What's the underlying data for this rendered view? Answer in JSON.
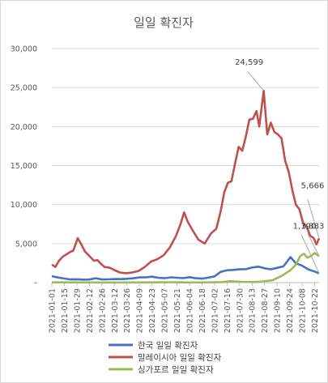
{
  "chart_data": {
    "type": "line",
    "title": "일일 확진자",
    "xlabel": "",
    "ylabel": "",
    "ylim": [
      0,
      30000
    ],
    "yticks": [
      0,
      5000,
      10000,
      15000,
      20000,
      25000,
      30000
    ],
    "ytick_labels": [
      "-",
      "5,000",
      "10,000",
      "15,000",
      "20,000",
      "25,000",
      "30,000"
    ],
    "xtick_labels": [
      "2021-01-01",
      "2021-01-15",
      "2021-01-29",
      "2021-02-12",
      "2021-02-26",
      "2021-03-12",
      "2021-03-26",
      "2021-04-09",
      "2021-04-23",
      "2021-05-07",
      "2021-05-21",
      "2021-06-04",
      "2021-06-18",
      "2021-07-02",
      "2021-07-16",
      "2021-07-30",
      "2021-08-13",
      "2021-08-27",
      "2021-09-10",
      "2021-09-24",
      "2021-10-08",
      "2021-10-22"
    ],
    "grid": "horizontal",
    "legend_position": "bottom",
    "x_start": "2021-01-01",
    "x_end": "2021-10-27",
    "series": [
      {
        "name": "한국 일일 확진자",
        "color": "#4472c4",
        "points": [
          [
            "2021-01-01",
            820
          ],
          [
            "2021-01-08",
            650
          ],
          [
            "2021-01-15",
            520
          ],
          [
            "2021-01-22",
            410
          ],
          [
            "2021-01-29",
            430
          ],
          [
            "2021-02-05",
            380
          ],
          [
            "2021-02-12",
            390
          ],
          [
            "2021-02-19",
            560
          ],
          [
            "2021-02-26",
            410
          ],
          [
            "2021-03-05",
            420
          ],
          [
            "2021-03-12",
            460
          ],
          [
            "2021-03-19",
            450
          ],
          [
            "2021-03-26",
            490
          ],
          [
            "2021-04-02",
            550
          ],
          [
            "2021-04-09",
            660
          ],
          [
            "2021-04-16",
            670
          ],
          [
            "2021-04-23",
            760
          ],
          [
            "2021-04-30",
            620
          ],
          [
            "2021-05-07",
            560
          ],
          [
            "2021-05-14",
            670
          ],
          [
            "2021-05-21",
            620
          ],
          [
            "2021-05-28",
            570
          ],
          [
            "2021-06-04",
            700
          ],
          [
            "2021-06-11",
            560
          ],
          [
            "2021-06-18",
            510
          ],
          [
            "2021-06-25",
            630
          ],
          [
            "2021-07-02",
            800
          ],
          [
            "2021-07-09",
            1380
          ],
          [
            "2021-07-16",
            1580
          ],
          [
            "2021-07-23",
            1630
          ],
          [
            "2021-07-30",
            1700
          ],
          [
            "2021-08-06",
            1720
          ],
          [
            "2021-08-13",
            1930
          ],
          [
            "2021-08-20",
            2050
          ],
          [
            "2021-08-27",
            1840
          ],
          [
            "2021-09-03",
            1700
          ],
          [
            "2021-09-10",
            1890
          ],
          [
            "2021-09-17",
            2080
          ],
          [
            "2021-09-25",
            3270
          ],
          [
            "2021-10-01",
            2480
          ],
          [
            "2021-10-08",
            2170
          ],
          [
            "2021-10-15",
            1680
          ],
          [
            "2021-10-22",
            1420
          ],
          [
            "2021-10-27",
            1190
          ]
        ]
      },
      {
        "name": "말레이시아 일일 확진자",
        "color": "#c0504d",
        "points": [
          [
            "2021-01-01",
            2300
          ],
          [
            "2021-01-05",
            2000
          ],
          [
            "2021-01-09",
            2800
          ],
          [
            "2021-01-13",
            3300
          ],
          [
            "2021-01-17",
            3600
          ],
          [
            "2021-01-21",
            3900
          ],
          [
            "2021-01-25",
            4100
          ],
          [
            "2021-01-30",
            5700
          ],
          [
            "2021-02-03",
            4900
          ],
          [
            "2021-02-07",
            4000
          ],
          [
            "2021-02-12",
            3400
          ],
          [
            "2021-02-17",
            2800
          ],
          [
            "2021-02-21",
            2900
          ],
          [
            "2021-02-25",
            2400
          ],
          [
            "2021-03-01",
            2000
          ],
          [
            "2021-03-07",
            1900
          ],
          [
            "2021-03-12",
            1600
          ],
          [
            "2021-03-18",
            1300
          ],
          [
            "2021-03-25",
            1200
          ],
          [
            "2021-04-01",
            1300
          ],
          [
            "2021-04-08",
            1500
          ],
          [
            "2021-04-15",
            2000
          ],
          [
            "2021-04-22",
            2700
          ],
          [
            "2021-04-29",
            3000
          ],
          [
            "2021-05-06",
            3500
          ],
          [
            "2021-05-13",
            4500
          ],
          [
            "2021-05-20",
            6000
          ],
          [
            "2021-05-25",
            7500
          ],
          [
            "2021-05-29",
            9000
          ],
          [
            "2021-06-02",
            7800
          ],
          [
            "2021-06-08",
            6600
          ],
          [
            "2021-06-14",
            5500
          ],
          [
            "2021-06-21",
            5000
          ],
          [
            "2021-06-28",
            6300
          ],
          [
            "2021-07-04",
            6900
          ],
          [
            "2021-07-09",
            9200
          ],
          [
            "2021-07-13",
            11600
          ],
          [
            "2021-07-17",
            12800
          ],
          [
            "2021-07-21",
            13000
          ],
          [
            "2021-07-25",
            15300
          ],
          [
            "2021-07-29",
            17400
          ],
          [
            "2021-08-02",
            16900
          ],
          [
            "2021-08-06",
            18700
          ],
          [
            "2021-08-10",
            20900
          ],
          [
            "2021-08-14",
            21000
          ],
          [
            "2021-08-18",
            22000
          ],
          [
            "2021-08-21",
            20000
          ],
          [
            "2021-08-26",
            24599
          ],
          [
            "2021-08-30",
            19000
          ],
          [
            "2021-09-03",
            20500
          ],
          [
            "2021-09-07",
            19300
          ],
          [
            "2021-09-11",
            19000
          ],
          [
            "2021-09-15",
            18500
          ],
          [
            "2021-09-19",
            15600
          ],
          [
            "2021-09-23",
            14200
          ],
          [
            "2021-09-27",
            11900
          ],
          [
            "2021-10-01",
            10000
          ],
          [
            "2021-10-05",
            9400
          ],
          [
            "2021-10-09",
            7700
          ],
          [
            "2021-10-13",
            7200
          ],
          [
            "2021-10-17",
            6000
          ],
          [
            "2021-10-21",
            5700
          ],
          [
            "2021-10-24",
            4900
          ],
          [
            "2021-10-27",
            5666
          ]
        ]
      },
      {
        "name": "싱가포르 일일 확진자",
        "color": "#9bbb59",
        "points": [
          [
            "2021-01-01",
            30
          ],
          [
            "2021-02-01",
            25
          ],
          [
            "2021-03-01",
            15
          ],
          [
            "2021-04-01",
            25
          ],
          [
            "2021-05-01",
            30
          ],
          [
            "2021-05-15",
            45
          ],
          [
            "2021-06-01",
            25
          ],
          [
            "2021-06-20",
            20
          ],
          [
            "2021-07-10",
            60
          ],
          [
            "2021-07-20",
            180
          ],
          [
            "2021-08-01",
            100
          ],
          [
            "2021-08-15",
            70
          ],
          [
            "2021-08-25",
            160
          ],
          [
            "2021-09-05",
            300
          ],
          [
            "2021-09-15",
            850
          ],
          [
            "2021-09-25",
            1600
          ],
          [
            "2021-10-01",
            2300
          ],
          [
            "2021-10-06",
            3400
          ],
          [
            "2021-10-10",
            3700
          ],
          [
            "2021-10-14",
            3200
          ],
          [
            "2021-10-18",
            3400
          ],
          [
            "2021-10-22",
            3800
          ],
          [
            "2021-10-27",
            3383
          ]
        ]
      }
    ],
    "annotations": [
      {
        "text": "24,599",
        "series": 1,
        "x": "2021-08-26",
        "y": 24599
      },
      {
        "text": "5,666",
        "series": 1,
        "x": "2021-10-27",
        "y": 5666
      },
      {
        "text": "3,383",
        "series": 2,
        "x": "2021-10-27",
        "y": 3383
      },
      {
        "text": "1,190",
        "series": 0,
        "x": "2021-10-27",
        "y": 1190
      }
    ]
  }
}
